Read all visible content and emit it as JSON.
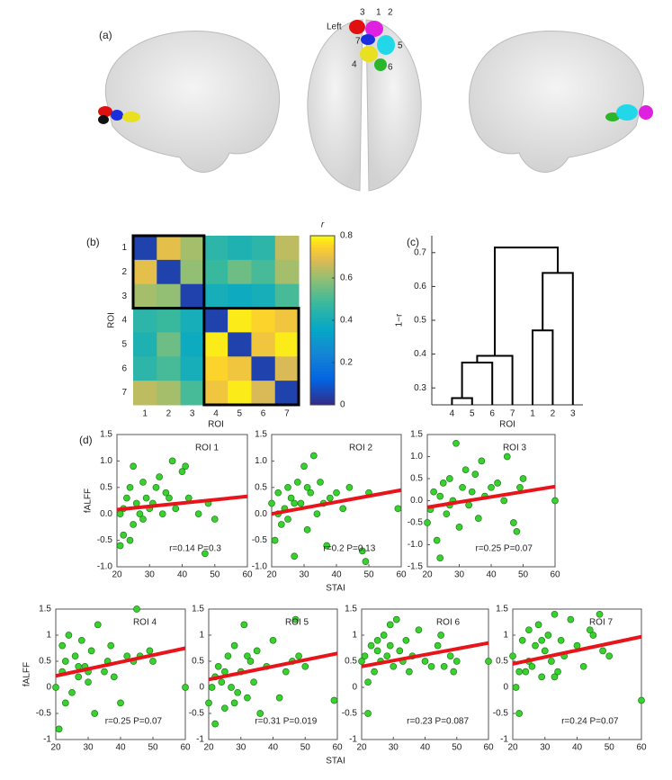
{
  "panel_labels": [
    "(a)",
    "(b)",
    "(c)",
    "(d)"
  ],
  "brain": {
    "side_label": "Left",
    "roi_labels": [
      "1",
      "2",
      "3",
      "4",
      "5",
      "6",
      "7"
    ]
  },
  "chart_data": [
    {
      "type": "heatmap",
      "categories": [
        "1",
        "2",
        "3",
        "4",
        "5",
        "6",
        "7"
      ],
      "xlabel": "ROI",
      "ylabel": "ROI",
      "values": [
        [
          0.05,
          0.7,
          0.62,
          0.45,
          0.42,
          0.45,
          0.65
        ],
        [
          0.7,
          0.05,
          0.6,
          0.48,
          0.55,
          0.5,
          0.62
        ],
        [
          0.62,
          0.6,
          0.05,
          0.4,
          0.38,
          0.4,
          0.5
        ],
        [
          0.45,
          0.48,
          0.4,
          0.05,
          0.78,
          0.75,
          0.72
        ],
        [
          0.42,
          0.55,
          0.38,
          0.78,
          0.05,
          0.72,
          0.78
        ],
        [
          0.45,
          0.5,
          0.4,
          0.75,
          0.72,
          0.05,
          0.68
        ],
        [
          0.65,
          0.62,
          0.5,
          0.72,
          0.78,
          0.68,
          0.05
        ]
      ],
      "colormap": "parula",
      "clim": [
        0,
        0.8
      ],
      "cticks": [
        0,
        0.2,
        0.4,
        0.6,
        0.8
      ],
      "colorbar_label": "r"
    },
    {
      "type": "dendrogram",
      "leaves": [
        "4",
        "5",
        "6",
        "7",
        "1",
        "2",
        "3"
      ],
      "xlabel": "ROI",
      "ylabel": "1−r",
      "merges": [
        [
          0,
          1,
          0.27
        ],
        [
          7,
          2,
          0.375
        ],
        [
          8,
          3,
          0.395
        ],
        [
          4,
          5,
          0.47
        ],
        [
          10,
          6,
          0.64
        ],
        [
          9,
          11,
          0.715
        ]
      ],
      "ylim": [
        0.25,
        0.75
      ],
      "yticks": [
        0.3,
        0.4,
        0.5,
        0.6,
        0.7
      ]
    },
    {
      "type": "scatter",
      "title": "ROI 1",
      "annotation": "r=0.14 P=0.3",
      "ylabel": "fALFF",
      "x": [
        21,
        22,
        22,
        23,
        24,
        25,
        25,
        26,
        27,
        28,
        28,
        29,
        30,
        31,
        32,
        33,
        34,
        35,
        36,
        37,
        38,
        40,
        41,
        42,
        45,
        47,
        48,
        50,
        21,
        24
      ],
      "values": [
        -0.6,
        -0.4,
        0.1,
        0.3,
        0.5,
        -0.2,
        0.9,
        0.2,
        0.0,
        0.6,
        -0.1,
        0.3,
        0.1,
        0.2,
        0.5,
        0.7,
        0.0,
        0.4,
        0.3,
        1.0,
        0.1,
        0.8,
        0.9,
        0.3,
        0.0,
        -0.75,
        0.2,
        -0.1,
        0.0,
        -0.5
      ],
      "color": "#39d12f",
      "fit": {
        "x": [
          20,
          60
        ],
        "values": [
          0.08,
          0.33
        ]
      },
      "fit_color": "#e8141b",
      "xlim": [
        20,
        60
      ],
      "xticks": [
        20,
        30,
        40,
        50,
        60
      ],
      "ylim": [
        -1,
        1.5
      ],
      "yticks": [
        {
          "value": -1,
          "label": "-1.0"
        },
        -0.5,
        {
          "value": 0,
          "label": "0.0"
        },
        0.5,
        {
          "value": 1,
          "label": "1.0"
        },
        1.5
      ]
    },
    {
      "type": "scatter",
      "title": "ROI 2",
      "annotation": "r=0.2 P=0.13",
      "xlabel": "STAI",
      "x": [
        20,
        21,
        22,
        23,
        24,
        25,
        25,
        26,
        27,
        28,
        29,
        30,
        31,
        32,
        33,
        34,
        35,
        36,
        37,
        38,
        40,
        42,
        44,
        48,
        49,
        50,
        59,
        22,
        27,
        31
      ],
      "values": [
        0.2,
        -0.5,
        0.4,
        -0.2,
        0.1,
        0.5,
        -0.1,
        0.3,
        -0.8,
        0.6,
        0.2,
        0.9,
        -0.3,
        0.4,
        1.1,
        0.0,
        0.6,
        0.2,
        -0.6,
        0.3,
        0.4,
        0.1,
        0.5,
        -0.7,
        -0.9,
        0.4,
        0.1,
        0.0,
        0.2,
        0.5
      ],
      "color": "#39d12f",
      "fit": {
        "x": [
          20,
          60
        ],
        "values": [
          0.0,
          0.45
        ]
      },
      "fit_color": "#e8141b",
      "xlim": [
        20,
        60
      ],
      "xticks": [
        20,
        30,
        40,
        50,
        60
      ],
      "ylim": [
        -1,
        1.5
      ],
      "yticks": [
        {
          "value": -1,
          "label": "-1.0"
        },
        -0.5,
        {
          "value": 0,
          "label": "0.0"
        },
        0.5,
        {
          "value": 1,
          "label": "1.0"
        },
        1.5
      ]
    },
    {
      "type": "scatter",
      "title": "ROI 3",
      "annotation": "r=0.25 P=0.07",
      "x": [
        20,
        21,
        22,
        23,
        24,
        25,
        26,
        27,
        28,
        29,
        30,
        31,
        32,
        33,
        34,
        35,
        36,
        37,
        38,
        40,
        42,
        44,
        45,
        47,
        48,
        49,
        50,
        60,
        24,
        27
      ],
      "values": [
        -0.5,
        -0.2,
        0.2,
        -0.9,
        0.1,
        0.4,
        -0.3,
        0.5,
        0.0,
        1.3,
        -0.6,
        0.3,
        0.7,
        -0.1,
        0.2,
        0.6,
        -0.4,
        0.9,
        0.1,
        0.3,
        0.4,
        0.0,
        1.0,
        -0.5,
        -0.7,
        0.3,
        0.5,
        0.0,
        -1.3,
        -0.1
      ],
      "color": "#39d12f",
      "fit": {
        "x": [
          20,
          60
        ],
        "values": [
          -0.15,
          0.32
        ]
      },
      "fit_color": "#e8141b",
      "xlim": [
        20,
        60
      ],
      "xticks": [
        20,
        30,
        40,
        50,
        60
      ],
      "ylim": [
        -1.5,
        1.5
      ],
      "yticks": [
        -1.5,
        {
          "value": -1,
          "label": "-1.0"
        },
        -0.5,
        {
          "value": 0,
          "label": "0.0"
        },
        0.5,
        {
          "value": 1,
          "label": "1.0"
        },
        1.5
      ]
    },
    {
      "type": "scatter",
      "title": "ROI 4",
      "annotation": "r=0.25 P=0.07",
      "ylabel": "fALFF",
      "x": [
        20,
        21,
        22,
        22,
        23,
        24,
        25,
        26,
        27,
        28,
        29,
        30,
        31,
        32,
        33,
        35,
        36,
        37,
        38,
        40,
        42,
        44,
        45,
        46,
        49,
        50,
        60,
        23,
        27,
        30
      ],
      "values": [
        0.0,
        -0.8,
        0.8,
        0.3,
        0.5,
        1.0,
        -0.1,
        0.6,
        0.2,
        0.9,
        0.4,
        0.1,
        0.7,
        -0.5,
        1.2,
        0.3,
        0.5,
        0.8,
        0.2,
        -0.3,
        0.6,
        0.5,
        1.5,
        0.6,
        0.7,
        0.5,
        0.0,
        -0.3,
        0.4,
        0.3
      ],
      "color": "#39d12f",
      "fit": {
        "x": [
          20,
          60
        ],
        "values": [
          0.22,
          0.75
        ]
      },
      "fit_color": "#e8141b",
      "xlim": [
        20,
        60
      ],
      "xticks": [
        20,
        30,
        40,
        50,
        60
      ],
      "ylim": [
        -1,
        1.5
      ],
      "yticks": [
        -1,
        -0.5,
        0,
        0.5,
        1,
        1.5
      ]
    },
    {
      "type": "scatter",
      "title": "ROI 5",
      "annotation": "r=0.31 P=0.019",
      "x": [
        20,
        21,
        22,
        23,
        24,
        25,
        26,
        27,
        28,
        29,
        30,
        31,
        32,
        33,
        34,
        35,
        36,
        38,
        40,
        42,
        44,
        46,
        47,
        48,
        50,
        59,
        22,
        25,
        28,
        32
      ],
      "values": [
        -0.3,
        0.0,
        -0.7,
        0.4,
        0.1,
        -0.4,
        0.6,
        0.0,
        0.8,
        -0.1,
        0.3,
        1.2,
        -0.2,
        0.5,
        0.1,
        0.7,
        -0.5,
        0.4,
        0.9,
        -0.2,
        0.3,
        0.5,
        1.3,
        0.6,
        0.4,
        -0.25,
        0.2,
        0.3,
        -0.3,
        0.6
      ],
      "color": "#39d12f",
      "fit": {
        "x": [
          20,
          60
        ],
        "values": [
          0.15,
          0.65
        ]
      },
      "fit_color": "#e8141b",
      "xlim": [
        20,
        60
      ],
      "xticks": [
        20,
        30,
        40,
        50,
        60
      ],
      "ylim": [
        -1,
        1.5
      ],
      "yticks": [
        -1,
        -0.5,
        0,
        0.5,
        1,
        1.5
      ]
    },
    {
      "type": "scatter",
      "title": "ROI 6",
      "annotation": "r=0.23 P=0.087",
      "xlabel": "STAI",
      "x": [
        20,
        21,
        22,
        23,
        24,
        25,
        26,
        27,
        28,
        29,
        30,
        31,
        32,
        33,
        34,
        35,
        36,
        38,
        40,
        42,
        44,
        45,
        46,
        48,
        49,
        50,
        60,
        22,
        25,
        29
      ],
      "values": [
        0.5,
        0.6,
        -0.5,
        0.8,
        0.3,
        0.9,
        0.5,
        1.0,
        0.6,
        1.2,
        0.4,
        1.3,
        0.7,
        0.5,
        0.9,
        0.3,
        0.6,
        1.1,
        0.5,
        0.4,
        0.8,
        1.0,
        0.4,
        0.6,
        0.3,
        0.5,
        0.5,
        0.1,
        0.7,
        0.8
      ],
      "color": "#39d12f",
      "fit": {
        "x": [
          20,
          60
        ],
        "values": [
          0.4,
          0.85
        ]
      },
      "fit_color": "#e8141b",
      "xlim": [
        20,
        60
      ],
      "xticks": [
        20,
        30,
        40,
        50,
        60
      ],
      "ylim": [
        -1,
        1.5
      ],
      "yticks": [
        -1,
        -0.5,
        0,
        0.5,
        1,
        1.5
      ]
    },
    {
      "type": "scatter",
      "title": "ROI 7",
      "annotation": "r=0.24 P=0.07",
      "x": [
        20,
        21,
        22,
        23,
        24,
        25,
        26,
        27,
        28,
        29,
        30,
        31,
        32,
        33,
        34,
        35,
        36,
        38,
        40,
        42,
        44,
        45,
        47,
        48,
        50,
        60,
        22,
        25,
        29,
        33
      ],
      "values": [
        0.6,
        0.0,
        -0.5,
        0.9,
        0.3,
        1.1,
        0.4,
        0.8,
        1.2,
        0.2,
        0.7,
        1.0,
        0.5,
        1.4,
        0.3,
        0.9,
        0.6,
        1.3,
        0.8,
        0.4,
        1.1,
        1.0,
        1.4,
        0.7,
        0.6,
        -0.25,
        0.3,
        0.5,
        0.9,
        0.2
      ],
      "color": "#39d12f",
      "fit": {
        "x": [
          20,
          60
        ],
        "values": [
          0.45,
          0.97
        ]
      },
      "fit_color": "#e8141b",
      "xlim": [
        20,
        60
      ],
      "xticks": [
        20,
        30,
        40,
        50,
        60
      ],
      "ylim": [
        -1,
        1.5
      ],
      "yticks": [
        -1,
        -0.5,
        0,
        0.5,
        1,
        1.5
      ]
    }
  ]
}
